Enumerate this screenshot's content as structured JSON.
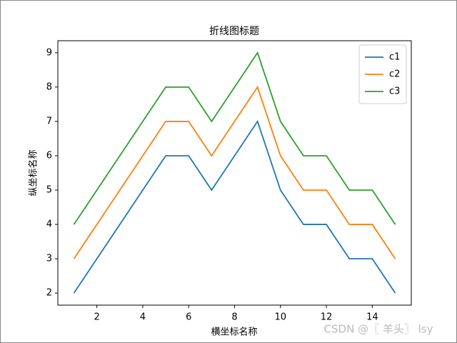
{
  "chart_data": {
    "type": "line",
    "title": "折线图标题",
    "x_label": "横坐标名称",
    "y_label": "纵坐标名称",
    "x": [
      1,
      2,
      3,
      4,
      5,
      6,
      7,
      8,
      9,
      10,
      11,
      12,
      13,
      14,
      15
    ],
    "series": [
      {
        "name": "c1",
        "color": "#1f77b4",
        "values": [
          2,
          3,
          4,
          5,
          6,
          6,
          5,
          6,
          7,
          5,
          4,
          4,
          3,
          3,
          2
        ]
      },
      {
        "name": "c2",
        "color": "#ff7f0e",
        "values": [
          3,
          4,
          5,
          6,
          7,
          7,
          6,
          7,
          8,
          6,
          5,
          5,
          4,
          4,
          3
        ]
      },
      {
        "name": "c3",
        "color": "#2ca02c",
        "values": [
          4,
          5,
          6,
          7,
          8,
          8,
          7,
          8,
          9,
          7,
          6,
          6,
          5,
          5,
          4
        ]
      }
    ],
    "xlim": [
      0.3,
      15.7
    ],
    "xticks": [
      2,
      4,
      6,
      8,
      10,
      12,
      14
    ],
    "ylim": [
      1.65,
      9.35
    ],
    "yticks": [
      2,
      3,
      4,
      5,
      6,
      7,
      8,
      9
    ],
    "legend": "upper right",
    "watermark": "CSDN @〖 羊头〗 lsy"
  }
}
